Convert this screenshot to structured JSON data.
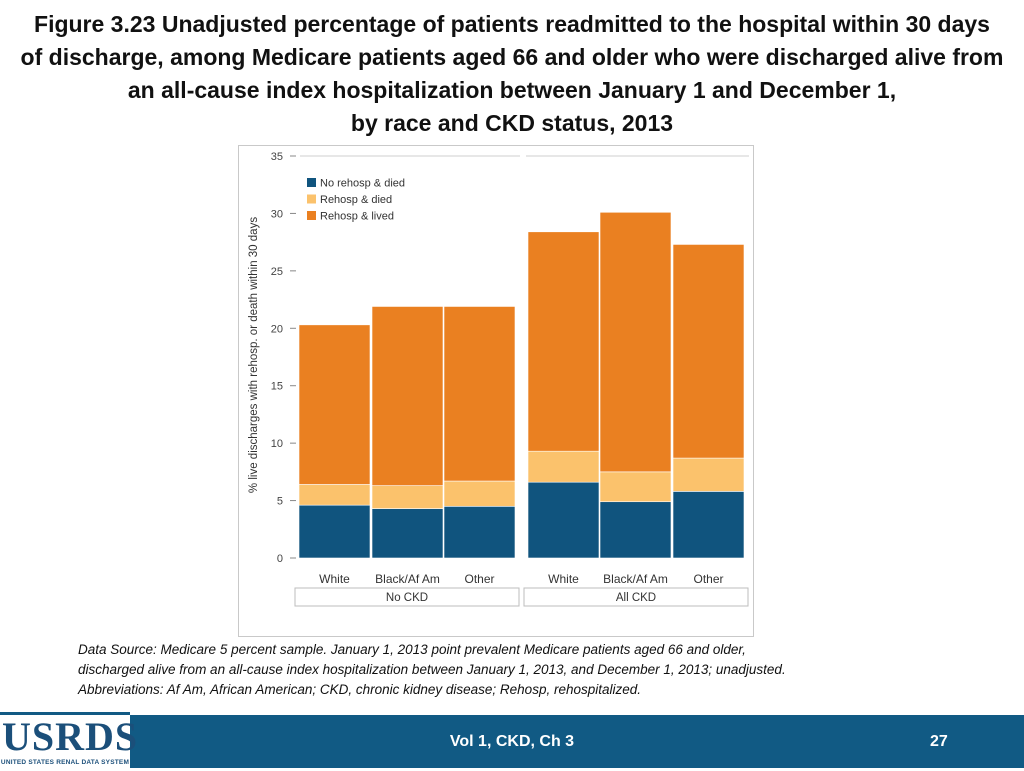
{
  "title": {
    "line1": "Figure 3.23  Unadjusted percentage of patients readmitted to the hospital within 30 days",
    "line2": "of discharge, among Medicare patients aged 66 and older who were discharged alive from",
    "line3": "an all-cause index hospitalization between January 1 and December 1,",
    "line4": "by race and CKD status, 2013"
  },
  "chart_data": {
    "type": "bar",
    "stacked": true,
    "ylabel": "% live discharges with rehosp. or death within 30 days",
    "ylim": [
      0,
      35
    ],
    "yticks": [
      0,
      5,
      10,
      15,
      20,
      25,
      30,
      35
    ],
    "legend_position": "top-left",
    "groups": [
      "No CKD",
      "All CKD"
    ],
    "categories": [
      "White",
      "Black/Af Am",
      "Other",
      "White",
      "Black/Af Am",
      "Other"
    ],
    "group_of_category": [
      0,
      0,
      0,
      1,
      1,
      1
    ],
    "series": [
      {
        "name": "No rehosp & died",
        "color": "#10547e",
        "values": [
          4.6,
          4.3,
          4.5,
          6.6,
          4.9,
          5.8
        ]
      },
      {
        "name": "Rehosp & died",
        "color": "#fbc26c",
        "values": [
          1.8,
          2.0,
          2.2,
          2.7,
          2.6,
          2.9
        ]
      },
      {
        "name": "Rehosp & lived",
        "color": "#ea8021",
        "values": [
          13.9,
          15.6,
          15.2,
          19.1,
          22.6,
          18.6
        ]
      }
    ]
  },
  "source": {
    "line1": "Data Source: Medicare 5 percent sample. January 1, 2013 point prevalent Medicare patients aged 66 and older,",
    "line2": "discharged alive from an all-cause index hospitalization between January 1, 2013, and December 1, 2013; unadjusted.",
    "line3": "Abbreviations: Af Am, African American; CKD, chronic kidney disease; Rehosp, rehospitalized."
  },
  "footer": {
    "logo_text": "USRDS",
    "logo_subtext": "UNITED STATES RENAL DATA SYSTEM",
    "center_text": "Vol 1, CKD, Ch 3",
    "page_number": "27"
  }
}
